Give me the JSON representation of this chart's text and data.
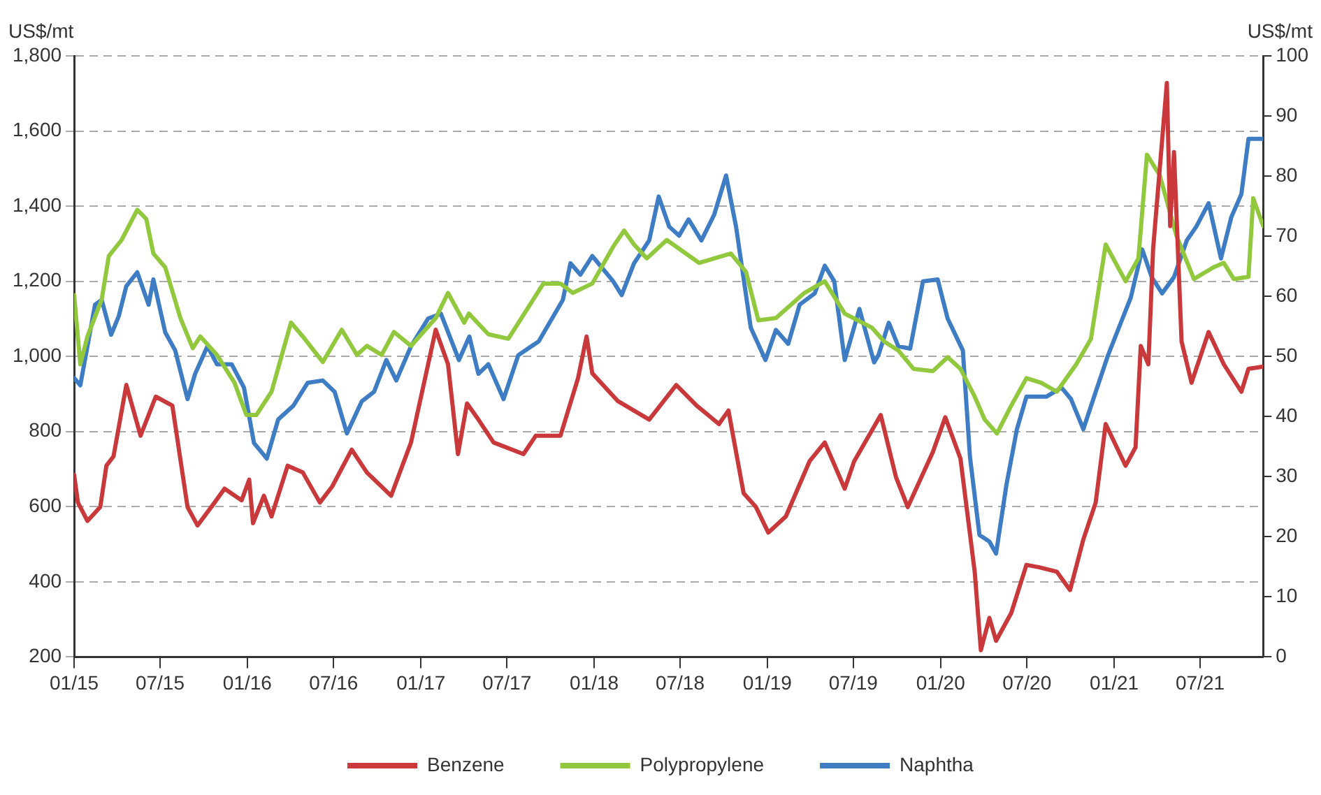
{
  "chart_data": {
    "type": "line",
    "ylabel": "US$/mt",
    "y2label": "US$/mt",
    "xlim": [
      "2015-01-01",
      "2021-11-11"
    ],
    "xticks": [
      {
        "value": "2015-01-01",
        "label": "01/15"
      },
      {
        "value": "2015-07-01",
        "label": "07/15"
      },
      {
        "value": "2016-01-01",
        "label": "01/16"
      },
      {
        "value": "2016-07-01",
        "label": "07/16"
      },
      {
        "value": "2017-01-01",
        "label": "01/17"
      },
      {
        "value": "2017-07-01",
        "label": "07/17"
      },
      {
        "value": "2018-01-01",
        "label": "01/18"
      },
      {
        "value": "2018-07-01",
        "label": "07/18"
      },
      {
        "value": "2019-01-01",
        "label": "01/19"
      },
      {
        "value": "2019-07-01",
        "label": "07/19"
      },
      {
        "value": "2020-01-01",
        "label": "01/20"
      },
      {
        "value": "2020-07-01",
        "label": "07/20"
      },
      {
        "value": "2021-01-01",
        "label": "01/21"
      },
      {
        "value": "2021-07-01",
        "label": "07/21"
      }
    ],
    "ylim": [
      200,
      1800
    ],
    "yticks": [
      200,
      400,
      600,
      800,
      {
        "value": 1000,
        "label": "1,000"
      },
      {
        "value": 1200,
        "label": "1,200"
      },
      {
        "value": 1400,
        "label": "1,400"
      },
      {
        "value": 1600,
        "label": "1,600"
      },
      {
        "value": 1800,
        "label": "1,800"
      }
    ],
    "y2lim": [
      0,
      100
    ],
    "y2ticks": [
      0,
      10,
      20,
      30,
      40,
      50,
      60,
      70,
      80,
      90,
      100
    ],
    "grid": "y",
    "legend": "bottom",
    "line_style": "solid",
    "series": [
      {
        "name": "Benzene",
        "color": "#c9393c",
        "x": [
          "2015-01-01",
          "2015-01-09",
          "2015-01-29",
          "2015-02-25",
          "2015-03-10",
          "2015-03-25",
          "2015-04-21",
          "2015-05-21",
          "2015-06-22",
          "2015-07-27",
          "2015-08-28",
          "2015-09-18",
          "2015-10-24",
          "2015-11-14",
          "2015-12-20",
          "2016-01-05",
          "2016-01-13",
          "2016-02-05",
          "2016-02-21",
          "2016-03-26",
          "2016-04-27",
          "2016-06-02",
          "2016-06-28",
          "2016-08-08",
          "2016-09-09",
          "2016-10-30",
          "2016-12-11",
          "2017-02-01",
          "2017-02-27",
          "2017-03-20",
          "2017-04-08",
          "2017-05-02",
          "2017-06-03",
          "2017-08-05",
          "2017-08-31",
          "2017-10-22",
          "2017-11-28",
          "2017-12-16",
          "2017-12-28",
          "2018-02-20",
          "2018-04-27",
          "2018-06-23",
          "2018-08-05",
          "2018-09-21",
          "2018-10-11",
          "2018-11-12",
          "2018-12-08",
          "2019-01-03",
          "2019-02-09",
          "2019-03-31",
          "2019-05-02",
          "2019-06-13",
          "2019-07-03",
          "2019-08-28",
          "2019-09-29",
          "2019-10-24",
          "2019-12-16",
          "2020-01-11",
          "2020-02-12",
          "2020-03-13",
          "2020-03-26",
          "2020-04-13",
          "2020-04-27",
          "2020-05-29",
          "2020-06-30",
          "2020-07-26",
          "2020-09-02",
          "2020-09-30",
          "2020-10-28",
          "2020-11-23",
          "2020-12-14",
          "2021-01-25",
          "2021-02-15",
          "2021-02-26",
          "2021-03-14",
          "2021-03-24",
          "2021-04-22",
          "2021-04-29",
          "2021-05-07",
          "2021-05-23",
          "2021-06-13",
          "2021-07-19",
          "2021-08-20",
          "2021-09-26",
          "2021-10-11",
          "2021-11-11"
        ],
        "values": [
          685,
          611,
          562,
          599,
          709,
          734,
          924,
          789,
          893,
          869,
          599,
          550,
          611,
          648,
          617,
          672,
          556,
          629,
          574,
          709,
          691,
          611,
          654,
          752,
          691,
          629,
          771,
          1071,
          979,
          740,
          875,
          832,
          771,
          740,
          789,
          789,
          942,
          1053,
          955,
          881,
          832,
          924,
          869,
          820,
          856,
          636,
          599,
          531,
          574,
          721,
          771,
          648,
          721,
          844,
          679,
          599,
          746,
          838,
          728,
          427,
          218,
          304,
          243,
          317,
          445,
          439,
          427,
          378,
          513,
          611,
          820,
          709,
          758,
          1028,
          979,
          1286,
          1728,
          1347,
          1544,
          1040,
          930,
          1065,
          979,
          906,
          967,
          973
        ]
      },
      {
        "name": "Polypropylene",
        "color": "#92c83e",
        "x": [
          "2015-01-01",
          "2015-01-14",
          "2015-01-29",
          "2015-02-28",
          "2015-03-15",
          "2015-04-11",
          "2015-05-14",
          "2015-06-02",
          "2015-06-17",
          "2015-07-12",
          "2015-08-13",
          "2015-09-08",
          "2015-09-24",
          "2015-10-29",
          "2015-12-05",
          "2015-12-30",
          "2016-01-20",
          "2016-02-21",
          "2016-04-02",
          "2016-04-27",
          "2016-06-08",
          "2016-07-18",
          "2016-08-19",
          "2016-09-09",
          "2016-10-10",
          "2016-11-05",
          "2016-12-11",
          "2017-02-01",
          "2017-02-27",
          "2017-04-02",
          "2017-04-12",
          "2017-05-23",
          "2017-07-04",
          "2017-09-16",
          "2017-10-22",
          "2017-11-17",
          "2017-12-28",
          "2018-02-10",
          "2018-03-05",
          "2018-03-26",
          "2018-04-22",
          "2018-06-03",
          "2018-08-10",
          "2018-10-16",
          "2018-11-17",
          "2018-12-13",
          "2019-01-19",
          "2019-03-20",
          "2019-05-02",
          "2019-06-13",
          "2019-08-09",
          "2019-09-04",
          "2019-10-04",
          "2019-11-05",
          "2019-12-16",
          "2020-01-16",
          "2020-02-12",
          "2020-03-13",
          "2020-04-03",
          "2020-04-29",
          "2020-05-29",
          "2020-06-30",
          "2020-07-31",
          "2020-09-02",
          "2020-10-13",
          "2020-11-13",
          "2020-12-14",
          "2021-01-25",
          "2021-02-21",
          "2021-03-11",
          "2021-04-07",
          "2021-05-12",
          "2021-06-18",
          "2021-07-29",
          "2021-08-20",
          "2021-09-10",
          "2021-10-11",
          "2021-10-21",
          "2021-11-11"
        ],
        "values": [
          1163,
          979,
          1053,
          1151,
          1267,
          1310,
          1390,
          1366,
          1274,
          1237,
          1102,
          1022,
          1053,
          1004,
          930,
          844,
          844,
          906,
          1090,
          1053,
          985,
          1071,
          1004,
          1028,
          1004,
          1065,
          1028,
          1102,
          1169,
          1090,
          1114,
          1059,
          1047,
          1194,
          1194,
          1169,
          1194,
          1292,
          1335,
          1298,
          1261,
          1310,
          1249,
          1274,
          1225,
          1096,
          1102,
          1169,
          1200,
          1114,
          1077,
          1040,
          1016,
          967,
          961,
          998,
          967,
          893,
          832,
          795,
          869,
          942,
          930,
          906,
          979,
          1047,
          1298,
          1200,
          1261,
          1537,
          1482,
          1322,
          1206,
          1237,
          1249,
          1206,
          1212,
          1421,
          1347
        ]
      },
      {
        "name": "Naphtha",
        "color": "#3e7cc4",
        "axis": "y2",
        "x": [
          "2015-01-01",
          "2015-01-14",
          "2015-02-14",
          "2015-02-28",
          "2015-03-20",
          "2015-04-05",
          "2015-04-21",
          "2015-05-14",
          "2015-06-07",
          "2015-06-17",
          "2015-07-12",
          "2015-08-02",
          "2015-08-28",
          "2015-09-13",
          "2015-10-09",
          "2015-10-29",
          "2015-11-29",
          "2015-12-25",
          "2016-01-15",
          "2016-02-11",
          "2016-03-06",
          "2016-04-07",
          "2016-05-07",
          "2016-06-08",
          "2016-07-03",
          "2016-07-29",
          "2016-08-29",
          "2016-09-24",
          "2016-10-20",
          "2016-11-10",
          "2016-12-11",
          "2017-01-16",
          "2017-02-12",
          "2017-03-22",
          "2017-04-13",
          "2017-05-02",
          "2017-05-23",
          "2017-06-24",
          "2017-07-25",
          "2017-09-06",
          "2017-10-27",
          "2017-11-12",
          "2017-12-03",
          "2017-12-28",
          "2018-02-10",
          "2018-02-28",
          "2018-03-26",
          "2018-04-27",
          "2018-05-17",
          "2018-06-08",
          "2018-06-29",
          "2018-07-19",
          "2018-08-15",
          "2018-09-11",
          "2018-10-06",
          "2018-10-27",
          "2018-11-27",
          "2018-12-28",
          "2019-01-19",
          "2019-02-14",
          "2019-03-10",
          "2019-04-11",
          "2019-05-02",
          "2019-05-22",
          "2019-06-13",
          "2019-07-14",
          "2019-08-14",
          "2019-08-23",
          "2019-09-14",
          "2019-10-04",
          "2019-10-29",
          "2019-11-25",
          "2019-12-26",
          "2020-01-16",
          "2020-02-17",
          "2020-03-03",
          "2020-03-23",
          "2020-04-13",
          "2020-04-27",
          "2020-05-19",
          "2020-06-10",
          "2020-06-30",
          "2020-08-11",
          "2020-09-12",
          "2020-10-02",
          "2020-10-28",
          "2020-11-23",
          "2020-12-19",
          "2021-01-15",
          "2021-02-05",
          "2021-03-01",
          "2021-03-21",
          "2021-04-12",
          "2021-05-07",
          "2021-06-03",
          "2021-06-23",
          "2021-07-19",
          "2021-08-14",
          "2021-09-05",
          "2021-09-26",
          "2021-10-11",
          "2021-11-11"
        ],
        "values": [
          46.4,
          45.2,
          58.6,
          59.4,
          53.6,
          56.7,
          61.7,
          64.0,
          58.6,
          62.8,
          54.0,
          51.0,
          42.9,
          47.1,
          51.7,
          48.7,
          48.7,
          44.8,
          35.6,
          33.0,
          39.5,
          41.8,
          45.6,
          46.0,
          44.1,
          37.2,
          42.5,
          44.1,
          49.4,
          46.0,
          51.7,
          56.3,
          57.1,
          49.4,
          53.3,
          47.1,
          48.7,
          42.9,
          50.2,
          52.5,
          59.4,
          65.5,
          63.6,
          66.7,
          62.5,
          60.2,
          65.5,
          69.3,
          76.6,
          71.6,
          70.1,
          72.8,
          69.3,
          73.6,
          80.1,
          71.6,
          54.8,
          49.4,
          54.4,
          52.1,
          58.6,
          60.5,
          65.1,
          62.5,
          49.4,
          57.9,
          49.0,
          50.2,
          55.6,
          51.7,
          51.3,
          62.5,
          62.8,
          56.3,
          51.0,
          33.3,
          20.3,
          19.2,
          17.2,
          28.7,
          37.9,
          43.3,
          43.3,
          44.8,
          42.9,
          37.9,
          44.1,
          50.2,
          55.6,
          59.8,
          67.8,
          63.2,
          60.5,
          63.2,
          69.3,
          71.6,
          75.5,
          66.3,
          73.2,
          77.0,
          86.2,
          86.2
        ]
      }
    ]
  }
}
